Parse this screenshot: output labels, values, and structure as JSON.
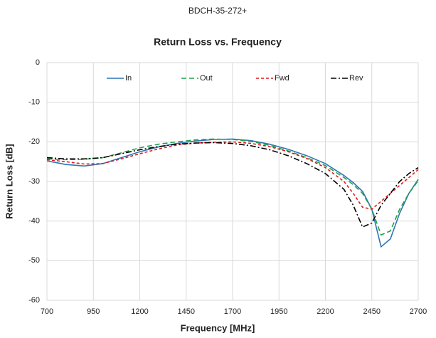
{
  "chart_data": {
    "type": "line",
    "suptitle": "BDCH-35-272+",
    "title": "Return Loss vs. Frequency",
    "x_label": "Frequency [MHz]",
    "y_label": "Return Loss [dB]",
    "x": [
      700,
      800,
      900,
      1000,
      1100,
      1200,
      1300,
      1400,
      1500,
      1600,
      1700,
      1800,
      1900,
      2000,
      2100,
      2200,
      2300,
      2350,
      2400,
      2450,
      2500,
      2550,
      2600,
      2650,
      2700
    ],
    "series": [
      {
        "name": "In",
        "color": "#2e75b6",
        "linestyle": "solid",
        "values": [
          -24.8,
          -25.7,
          -26.1,
          -25.5,
          -24.0,
          -22.5,
          -21.3,
          -20.4,
          -19.8,
          -19.4,
          -19.3,
          -19.7,
          -20.6,
          -21.9,
          -23.5,
          -25.5,
          -28.5,
          -30.3,
          -32.5,
          -37,
          -46.5,
          -44.5,
          -38,
          -33,
          -29.5
        ]
      },
      {
        "name": "Out",
        "color": "#1ea24a",
        "linestyle": "dashed",
        "values": [
          -24.3,
          -24.5,
          -24.4,
          -24.0,
          -22.8,
          -21.5,
          -20.6,
          -20.0,
          -19.5,
          -19.3,
          -19.4,
          -19.9,
          -20.9,
          -22.3,
          -24.0,
          -26.0,
          -29.0,
          -30.8,
          -33.0,
          -37.0,
          -43.5,
          -42.5,
          -37.0,
          -33.0,
          -29.8
        ]
      },
      {
        "name": "Fwd",
        "color": "#e01b1b",
        "linestyle": "dotted",
        "values": [
          -24.5,
          -25.0,
          -25.6,
          -25.5,
          -24.3,
          -23.0,
          -21.8,
          -20.8,
          -20.3,
          -20.1,
          -20.0,
          -20.4,
          -21.2,
          -22.5,
          -24.2,
          -26.5,
          -30.0,
          -33.0,
          -36.5,
          -37.0,
          -35.0,
          -33.0,
          -31.0,
          -29.0,
          -27.0
        ]
      },
      {
        "name": "Rev",
        "color": "#000000",
        "linestyle": "dashdot",
        "values": [
          -24.0,
          -24.3,
          -24.3,
          -24.0,
          -23.0,
          -22.0,
          -21.2,
          -20.6,
          -20.3,
          -20.2,
          -20.4,
          -21.0,
          -22.0,
          -23.5,
          -25.5,
          -28.0,
          -32.0,
          -36.0,
          -41.5,
          -40.5,
          -36.0,
          -33.0,
          -30.0,
          -28.0,
          -26.5
        ]
      }
    ],
    "xlim": [
      700,
      2700
    ],
    "xticks": [
      700,
      950,
      1200,
      1450,
      1700,
      1950,
      2200,
      2450,
      2700
    ],
    "ylim": [
      -60,
      0
    ],
    "yticks": [
      0,
      -10,
      -20,
      -30,
      -40,
      -50,
      -60
    ],
    "grid": true,
    "legend": "top"
  }
}
